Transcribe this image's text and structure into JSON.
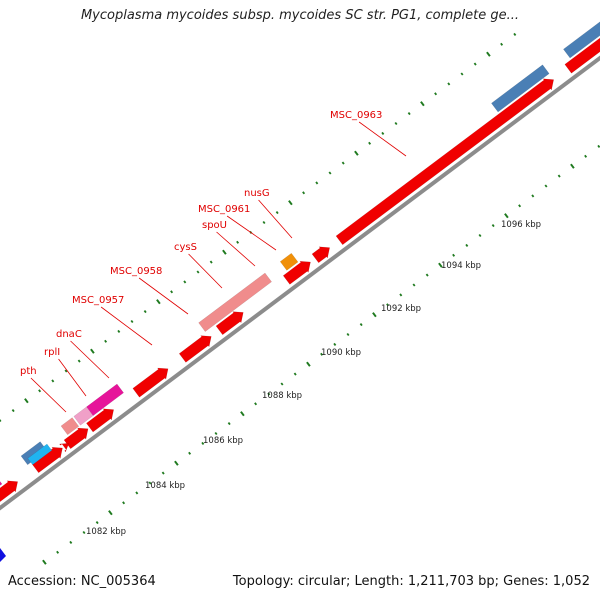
{
  "title": "Mycoplasma mycoides subsp. mycoides SC str. PG1, complete ge...",
  "footer": {
    "accession": "Accession: NC_005364",
    "summary": "Topology: circular; Length: 1,211,703 bp; Genes: 1,052"
  },
  "scale": {
    "unit": "kbp",
    "labels": [
      "1082 kbp",
      "1084 kbp",
      "1086 kbp",
      "1088 kbp",
      "1090 kbp",
      "1092 kbp",
      "1094 kbp",
      "1096 kbp"
    ]
  },
  "gene_labels": [
    "pth",
    "rplI",
    "dnaC",
    "MSC_0957",
    "MSC_0958",
    "cysS",
    "spoU",
    "MSC_0961",
    "nusG",
    "MSC_0963"
  ],
  "colors": {
    "backbone": "#8c8c8c",
    "tick": "#1f7a1f",
    "cds": "#f00000",
    "cds_light": "#f08c8c",
    "magenta": "#e6149a",
    "light_pink": "#f0a0c8",
    "steel_blue": "#4a7fb5",
    "sky_blue": "#20b4f0",
    "orange": "#f0900a",
    "blue": "#1010e0",
    "label": "#e00000"
  }
}
